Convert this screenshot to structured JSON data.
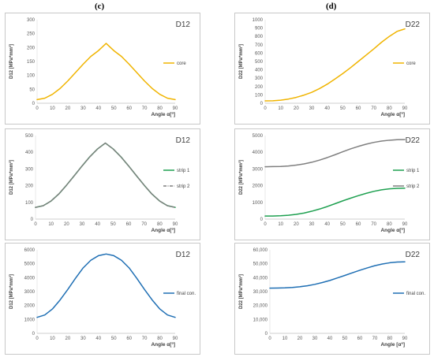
{
  "labels": {
    "c": "(c)",
    "d": "(d)"
  },
  "chart_data": [
    {
      "type": "line",
      "title": "D12",
      "xlabel": "Angle α[º]",
      "ylabel": "D12 [MPa*mm³]",
      "x": [
        0,
        5,
        10,
        15,
        20,
        25,
        30,
        35,
        40,
        45,
        50,
        55,
        60,
        65,
        70,
        75,
        80,
        85,
        90
      ],
      "ylim": [
        0,
        300
      ],
      "yticks": [
        "0",
        "50",
        "100",
        "150",
        "200",
        "250",
        "300"
      ],
      "xticks": [
        "0",
        "10",
        "20",
        "30",
        "40",
        "50",
        "60",
        "70",
        "80",
        "90"
      ],
      "legend_position": "right",
      "grid": false,
      "series": [
        {
          "name": "core",
          "color": "#f0b400",
          "dash": "",
          "values": [
            13,
            18,
            32,
            53,
            80,
            110,
            140,
            168,
            189,
            215,
            189,
            168,
            140,
            110,
            80,
            53,
            32,
            18,
            13
          ]
        }
      ]
    },
    {
      "type": "line",
      "title": "D22",
      "xlabel": "Angle α[º]",
      "ylabel": "D22 [MPa*mm³]",
      "x": [
        0,
        5,
        10,
        15,
        20,
        25,
        30,
        35,
        40,
        45,
        50,
        55,
        60,
        65,
        70,
        75,
        80,
        85,
        90
      ],
      "ylim": [
        0,
        1000
      ],
      "yticks": [
        "0",
        "100",
        "200",
        "300",
        "400",
        "500",
        "600",
        "700",
        "800",
        "900",
        "1000"
      ],
      "xticks": [
        "0",
        "10",
        "20",
        "30",
        "40",
        "50",
        "60",
        "70",
        "80",
        "90"
      ],
      "legend_position": "right",
      "grid": false,
      "series": [
        {
          "name": "core",
          "color": "#f0b400",
          "dash": "",
          "values": [
            28,
            30,
            37,
            50,
            70,
            97,
            130,
            175,
            228,
            290,
            355,
            425,
            500,
            575,
            650,
            730,
            800,
            860,
            890
          ]
        }
      ]
    },
    {
      "type": "line",
      "title": "D12",
      "xlabel": "Angle α[º]",
      "ylabel": "D12 [MPa*mm³]",
      "x": [
        0,
        5,
        10,
        15,
        20,
        25,
        30,
        35,
        40,
        45,
        50,
        55,
        60,
        65,
        70,
        75,
        80,
        85,
        90
      ],
      "ylim": [
        0,
        500
      ],
      "yticks": [
        "0",
        "100",
        "200",
        "300",
        "400",
        "500"
      ],
      "xticks": [
        "0",
        "10",
        "20",
        "30",
        "40",
        "50",
        "60",
        "70",
        "80",
        "90"
      ],
      "legend_position": "right",
      "grid": false,
      "series": [
        {
          "name": "strip 1",
          "color": "#1ea050",
          "dash": "",
          "values": [
            70,
            80,
            108,
            150,
            203,
            260,
            318,
            373,
            420,
            455,
            420,
            373,
            318,
            260,
            203,
            150,
            108,
            80,
            70
          ]
        },
        {
          "name": "strip 2",
          "color": "#7f7f7f",
          "dash": "4 1.5 1 1.5",
          "values": [
            70,
            80,
            108,
            150,
            203,
            260,
            318,
            373,
            420,
            455,
            420,
            373,
            318,
            260,
            203,
            150,
            108,
            80,
            70
          ]
        }
      ]
    },
    {
      "type": "line",
      "title": "D22",
      "xlabel": "Angle α[º]",
      "ylabel": "D22 [MPa*mm³]",
      "x": [
        0,
        5,
        10,
        15,
        20,
        25,
        30,
        35,
        40,
        45,
        50,
        55,
        60,
        65,
        70,
        75,
        80,
        85,
        90
      ],
      "ylim": [
        0,
        5000
      ],
      "yticks": [
        "0",
        "1000",
        "2000",
        "3000",
        "4000",
        "5000"
      ],
      "xticks": [
        "0",
        "10",
        "20",
        "30",
        "40",
        "50",
        "60",
        "70",
        "80",
        "90"
      ],
      "legend_position": "right",
      "grid": false,
      "series": [
        {
          "name": "strip 1",
          "color": "#1ea050",
          "dash": "",
          "values": [
            180,
            185,
            200,
            230,
            285,
            360,
            470,
            600,
            750,
            920,
            1090,
            1250,
            1400,
            1540,
            1660,
            1750,
            1810,
            1840,
            1850
          ]
        },
        {
          "name": "strip 2",
          "color": "#7f7f7f",
          "dash": "",
          "values": [
            3130,
            3140,
            3150,
            3180,
            3230,
            3300,
            3400,
            3530,
            3680,
            3850,
            4030,
            4200,
            4350,
            4480,
            4590,
            4670,
            4720,
            4750,
            4760
          ]
        }
      ]
    },
    {
      "type": "line",
      "title": "D12",
      "xlabel": "Angle α[º]",
      "ylabel": "D12 [MPa*mm³]",
      "x": [
        0,
        5,
        10,
        15,
        20,
        25,
        30,
        35,
        40,
        45,
        50,
        55,
        60,
        65,
        70,
        75,
        80,
        85,
        90
      ],
      "ylim": [
        0,
        6000
      ],
      "yticks": [
        "0",
        "1000",
        "2000",
        "3000",
        "4000",
        "5000",
        "6000"
      ],
      "xticks": [
        "0",
        "10",
        "20",
        "30",
        "40",
        "50",
        "60",
        "70",
        "80",
        "90"
      ],
      "legend_position": "right",
      "grid": false,
      "series": [
        {
          "name": "final con.",
          "color": "#1f6fb4",
          "dash": "",
          "values": [
            1150,
            1320,
            1750,
            2400,
            3150,
            3950,
            4700,
            5250,
            5580,
            5700,
            5580,
            5250,
            4700,
            3950,
            3150,
            2400,
            1750,
            1320,
            1150
          ]
        }
      ]
    },
    {
      "type": "line",
      "title": "D22",
      "xlabel": "Angle [αº]",
      "ylabel": "D22 [MPa*mm³]",
      "x": [
        0,
        5,
        10,
        15,
        20,
        25,
        30,
        35,
        40,
        45,
        50,
        55,
        60,
        65,
        70,
        75,
        80,
        85,
        90
      ],
      "ylim": [
        0,
        60000
      ],
      "yticks": [
        "0",
        "10,000",
        "20,000",
        "30,000",
        "40,000",
        "50,000",
        "60,000"
      ],
      "xticks": [
        "0",
        "10",
        "20",
        "30",
        "40",
        "50",
        "60",
        "70",
        "80",
        "90"
      ],
      "legend_position": "right",
      "grid": false,
      "series": [
        {
          "name": "final con.",
          "color": "#1f6fb4",
          "dash": "",
          "values": [
            32500,
            32550,
            32700,
            33000,
            33500,
            34200,
            35200,
            36500,
            38000,
            39800,
            41600,
            43500,
            45300,
            47000,
            48600,
            49800,
            50700,
            51200,
            51400
          ]
        }
      ]
    }
  ]
}
